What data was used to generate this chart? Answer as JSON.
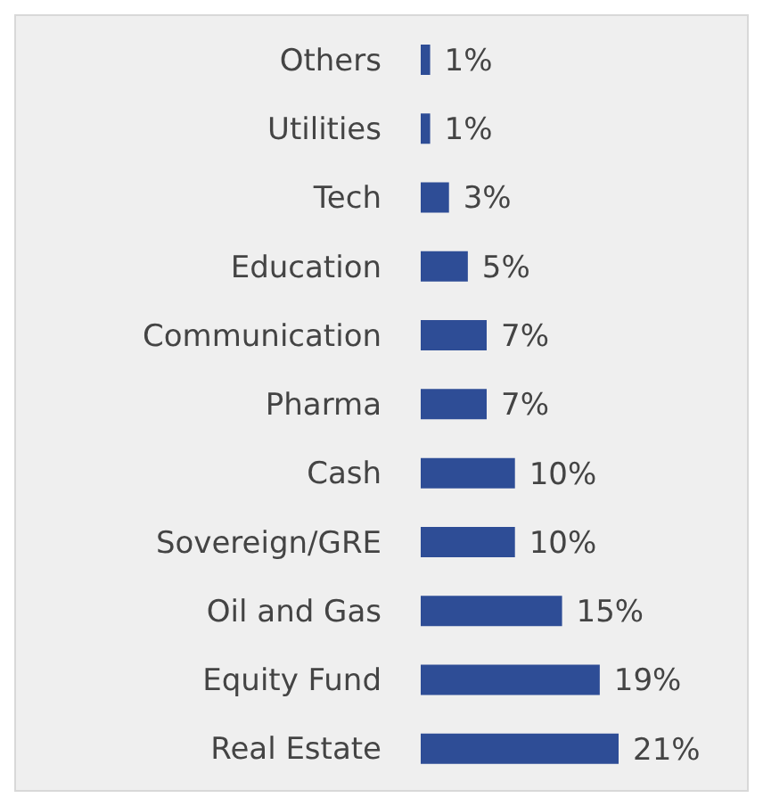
{
  "chart_data": {
    "type": "bar",
    "orientation": "horizontal",
    "categories": [
      "Others",
      "Utilities",
      "Tech",
      "Education",
      "Communication",
      "Pharma",
      "Cash",
      "Sovereign/GRE",
      "Oil and Gas",
      "Equity Fund",
      "Real Estate"
    ],
    "values": [
      1,
      1,
      3,
      5,
      7,
      7,
      10,
      10,
      15,
      19,
      21
    ],
    "value_labels": [
      "1%",
      "1%",
      "3%",
      "5%",
      "7%",
      "7%",
      "10%",
      "10%",
      "15%",
      "19%",
      "21%"
    ],
    "color": "#2e4d96",
    "grid": false,
    "legend": false
  }
}
